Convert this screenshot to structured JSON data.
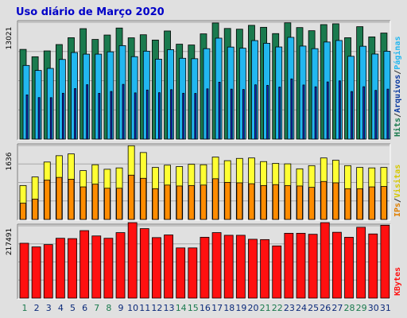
{
  "title": "Uso diário de Março 2020",
  "colors": {
    "hits": "#1a7a4e",
    "files": "#22b7f0",
    "pages": "#1a28c8",
    "ips": "#ff8c00",
    "visits": "#ffff33",
    "kbytes": "#ff1010",
    "weekend_day": "#1a7a4e",
    "weekday": "#0b2a7a"
  },
  "chart_data": [
    {
      "type": "bar",
      "panel": "top",
      "ylim": [
        0,
        13021
      ],
      "tick_label": "13021",
      "categories": [
        "1",
        "2",
        "3",
        "4",
        "5",
        "6",
        "7",
        "8",
        "9",
        "10",
        "11",
        "12",
        "13",
        "14",
        "15",
        "16",
        "17",
        "18",
        "19",
        "20",
        "21",
        "22",
        "23",
        "24",
        "25",
        "26",
        "27",
        "28",
        "29",
        "30",
        "31"
      ],
      "weekend_days": [
        "1",
        "7",
        "8",
        "14",
        "15",
        "21",
        "22",
        "28",
        "29"
      ],
      "series": [
        {
          "name": "Hits",
          "values": [
            10000,
            9180,
            9830,
            10540,
            11300,
            12310,
            11110,
            11600,
            12380,
            11290,
            11630,
            11040,
            12050,
            10580,
            10490,
            11730,
            12940,
            12330,
            12250,
            12680,
            12460,
            11760,
            12960,
            12430,
            12080,
            12760,
            12850,
            11300,
            12530,
            11390,
            11820
          ]
        },
        {
          "name": "Arquivos",
          "values": [
            8210,
            7650,
            7880,
            8880,
            9650,
            9470,
            9470,
            9730,
            10420,
            9190,
            9800,
            8910,
            9970,
            9010,
            8960,
            10080,
            11250,
            10260,
            10130,
            10980,
            10680,
            10270,
            11340,
            10370,
            10080,
            10820,
            10990,
            9230,
            10350,
            9480,
            9790
          ]
        },
        {
          "name": "Páginas",
          "values": [
            4930,
            4630,
            4620,
            5110,
            5630,
            6060,
            5100,
            5310,
            6100,
            5150,
            5470,
            5170,
            5510,
            5110,
            5090,
            5600,
            6340,
            5570,
            5530,
            6050,
            5990,
            5800,
            6710,
            6030,
            5830,
            6370,
            6490,
            5300,
            5840,
            5430,
            5570
          ]
        }
      ]
    },
    {
      "type": "bar",
      "panel": "middle",
      "ylim": [
        0,
        1636
      ],
      "tick_label": "1636",
      "categories": [
        "1",
        "2",
        "3",
        "4",
        "5",
        "6",
        "7",
        "8",
        "9",
        "10",
        "11",
        "12",
        "13",
        "14",
        "15",
        "16",
        "17",
        "18",
        "19",
        "20",
        "21",
        "22",
        "23",
        "24",
        "25",
        "26",
        "27",
        "28",
        "29",
        "30",
        "31"
      ],
      "series": [
        {
          "name": "Visitas",
          "values": [
            750,
            940,
            1270,
            1410,
            1450,
            1080,
            1210,
            1110,
            1140,
            1630,
            1480,
            1150,
            1200,
            1170,
            1220,
            1210,
            1380,
            1300,
            1350,
            1360,
            1280,
            1240,
            1230,
            1120,
            1190,
            1360,
            1310,
            1190,
            1150,
            1140,
            1150
          ]
        },
        {
          "name": "IPs",
          "values": [
            360,
            450,
            870,
            930,
            890,
            720,
            780,
            690,
            690,
            980,
            910,
            680,
            760,
            740,
            750,
            760,
            900,
            820,
            810,
            790,
            750,
            770,
            750,
            740,
            710,
            840,
            810,
            680,
            680,
            720,
            730
          ]
        }
      ]
    },
    {
      "type": "bar",
      "panel": "bottom",
      "ylim": [
        0,
        217491
      ],
      "tick_label": "217491",
      "categories": [
        "1",
        "2",
        "3",
        "4",
        "5",
        "6",
        "7",
        "8",
        "9",
        "10",
        "11",
        "12",
        "13",
        "14",
        "15",
        "16",
        "17",
        "18",
        "19",
        "20",
        "21",
        "22",
        "23",
        "24",
        "25",
        "26",
        "27",
        "28",
        "29",
        "30",
        "31"
      ],
      "series": [
        {
          "name": "KBytes",
          "values": [
            165000,
            154000,
            161000,
            180000,
            179000,
            203000,
            187000,
            180000,
            197000,
            227000,
            209000,
            182000,
            190000,
            151000,
            151000,
            183000,
            197000,
            189000,
            189000,
            177000,
            176000,
            157000,
            195000,
            195000,
            192000,
            227000,
            198000,
            183000,
            213000,
            193000,
            219000
          ]
        }
      ]
    }
  ],
  "right_labels": {
    "top": [
      {
        "text": "Hits",
        "color": "#1a7a4e"
      },
      {
        "text": "/",
        "color": "#333333"
      },
      {
        "text": "Arquivos",
        "color": "#0b3aa0"
      },
      {
        "text": "/",
        "color": "#333333"
      },
      {
        "text": "Páginas",
        "color": "#22b7f0"
      }
    ],
    "middle": [
      {
        "text": "IPs",
        "color": "#e08000"
      },
      {
        "text": "/",
        "color": "#333333"
      },
      {
        "text": "Visitas",
        "color": "#d6c800"
      }
    ],
    "bottom": [
      {
        "text": "KBytes",
        "color": "#ff1010"
      }
    ]
  }
}
